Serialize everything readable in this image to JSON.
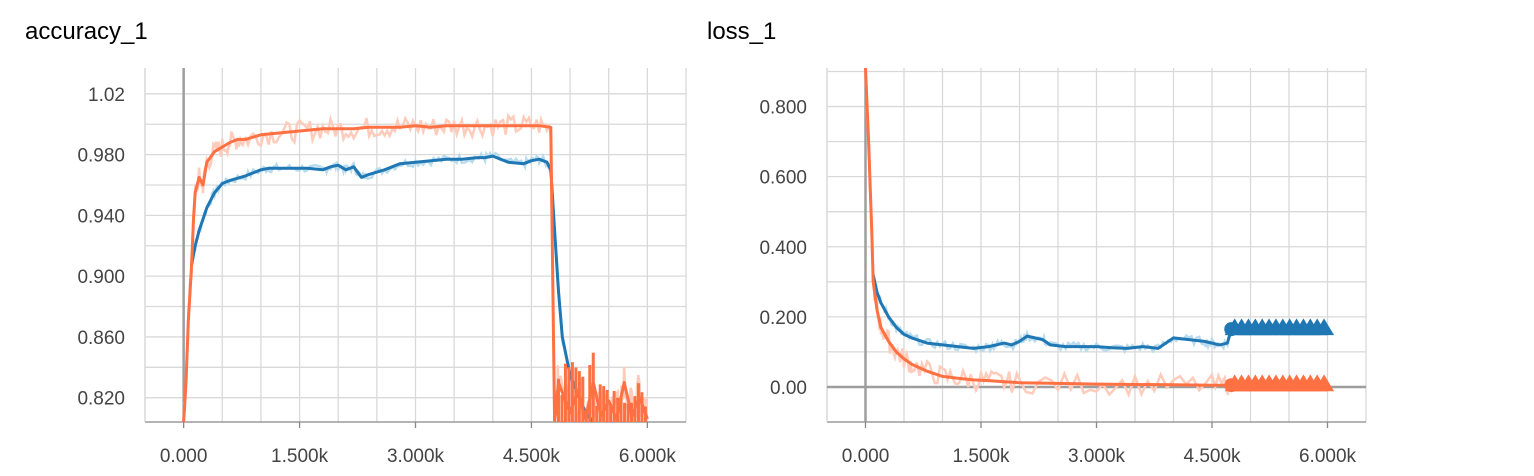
{
  "colors": {
    "orange": "#ff7043",
    "orange_light": "#ffccbc",
    "blue": "#1f77b4",
    "blue_light": "#b8dcee",
    "grid": "#d9d9d9",
    "axis": "#888888"
  },
  "chart_data": [
    {
      "type": "line",
      "title": "accuracy_1",
      "xlim": [
        -500,
        6500
      ],
      "ylim": [
        0.804,
        1.037
      ],
      "x_ticks": [
        0,
        1500,
        3000,
        4500,
        6000
      ],
      "x_tick_labels": [
        "0.000",
        "1.500k",
        "3.000k",
        "4.500k",
        "6.000k"
      ],
      "y_ticks": [
        0.82,
        0.86,
        0.9,
        0.94,
        0.98,
        1.02
      ],
      "y_tick_labels": [
        "0.820",
        "0.860",
        "0.900",
        "0.940",
        "0.980",
        "1.02"
      ],
      "grid": true,
      "series": [
        {
          "color": "blue",
          "x": [
            100,
            150,
            200,
            300,
            400,
            500,
            600,
            800,
            1000,
            1100,
            1200,
            1400,
            1600,
            1800,
            1900,
            2000,
            2100,
            2200,
            2300,
            2400,
            2600,
            2800,
            3000,
            3200,
            3400,
            3600,
            3800,
            3900,
            4000,
            4200,
            4400,
            4500,
            4600,
            4700,
            4750,
            4800,
            4850,
            4900,
            5000,
            5200,
            5300
          ],
          "y": [
            0.907,
            0.92,
            0.93,
            0.945,
            0.955,
            0.961,
            0.963,
            0.966,
            0.97,
            0.971,
            0.971,
            0.971,
            0.971,
            0.97,
            0.972,
            0.973,
            0.97,
            0.972,
            0.965,
            0.967,
            0.97,
            0.974,
            0.975,
            0.976,
            0.977,
            0.977,
            0.978,
            0.978,
            0.979,
            0.975,
            0.974,
            0.976,
            0.977,
            0.975,
            0.97,
            0.93,
            0.89,
            0.86,
            0.835,
            0.81,
            0.804
          ]
        },
        {
          "color": "orange",
          "x": [
            0,
            30,
            60,
            100,
            130,
            150,
            200,
            250,
            300,
            400,
            500,
            600,
            700,
            800,
            1000,
            1200,
            1400,
            1600,
            1800,
            2000,
            2200,
            2400,
            2600,
            2800,
            3000,
            3200,
            3400,
            3600,
            3800,
            4000,
            4200,
            4400,
            4600,
            4750,
            4800,
            4850,
            5000,
            5100,
            5200,
            5300,
            5400,
            5500,
            5600,
            5700,
            5800,
            5900,
            6000
          ],
          "y": [
            0.804,
            0.83,
            0.87,
            0.905,
            0.94,
            0.955,
            0.965,
            0.96,
            0.975,
            0.982,
            0.985,
            0.988,
            0.99,
            0.99,
            0.993,
            0.994,
            0.995,
            0.996,
            0.997,
            0.997,
            0.997,
            0.998,
            0.998,
            0.998,
            0.999,
            0.998,
            0.999,
            0.999,
            0.999,
            0.999,
            0.999,
            0.999,
            0.999,
            0.998,
            0.804,
            0.83,
            0.81,
            0.825,
            0.806,
            0.83,
            0.808,
            0.818,
            0.806,
            0.83,
            0.808,
            0.82,
            0.806
          ]
        }
      ]
    },
    {
      "type": "line",
      "title": "loss_1",
      "xlim": [
        -500,
        6500
      ],
      "ylim": [
        -0.1,
        0.91
      ],
      "x_ticks": [
        0,
        1500,
        3000,
        4500,
        6000
      ],
      "x_tick_labels": [
        "0.000",
        "1.500k",
        "3.000k",
        "4.500k",
        "6.000k"
      ],
      "y_ticks": [
        0,
        0.2,
        0.4,
        0.6,
        0.8
      ],
      "y_tick_labels": [
        "0.00",
        "0.200",
        "0.400",
        "0.600",
        "0.800"
      ],
      "grid": true,
      "series": [
        {
          "color": "blue",
          "x": [
            100,
            150,
            200,
            300,
            400,
            500,
            600,
            800,
            1000,
            1200,
            1400,
            1600,
            1700,
            1800,
            1900,
            2000,
            2100,
            2300,
            2400,
            2600,
            2800,
            3000,
            3200,
            3400,
            3600,
            3800,
            4000,
            4200,
            4400,
            4500,
            4600,
            4700,
            4750
          ],
          "y": [
            0.32,
            0.27,
            0.24,
            0.2,
            0.17,
            0.15,
            0.14,
            0.125,
            0.12,
            0.115,
            0.11,
            0.115,
            0.12,
            0.125,
            0.12,
            0.13,
            0.145,
            0.135,
            0.12,
            0.115,
            0.115,
            0.115,
            0.112,
            0.11,
            0.115,
            0.11,
            0.14,
            0.135,
            0.13,
            0.125,
            0.12,
            0.125,
            0.165
          ]
        },
        {
          "color": "orange",
          "x": [
            0,
            40,
            80,
            100,
            150,
            200,
            300,
            400,
            500,
            600,
            800,
            1000,
            1200,
            1400,
            1600,
            1800,
            2000,
            2500,
            3000,
            3500,
            4000,
            4500,
            4750
          ],
          "y": [
            0.91,
            0.7,
            0.45,
            0.3,
            0.22,
            0.17,
            0.13,
            0.1,
            0.08,
            0.065,
            0.045,
            0.03,
            0.025,
            0.02,
            0.018,
            0.015,
            0.012,
            0.01,
            0.008,
            0.007,
            0.006,
            0.005,
            0.005
          ]
        }
      ],
      "markers": [
        {
          "color": "blue",
          "x_start": 4750,
          "x_end": 6000,
          "y": 0.165,
          "count": 14
        },
        {
          "color": "orange",
          "x_start": 4750,
          "x_end": 6000,
          "y": 0.005,
          "count": 14
        }
      ]
    }
  ]
}
